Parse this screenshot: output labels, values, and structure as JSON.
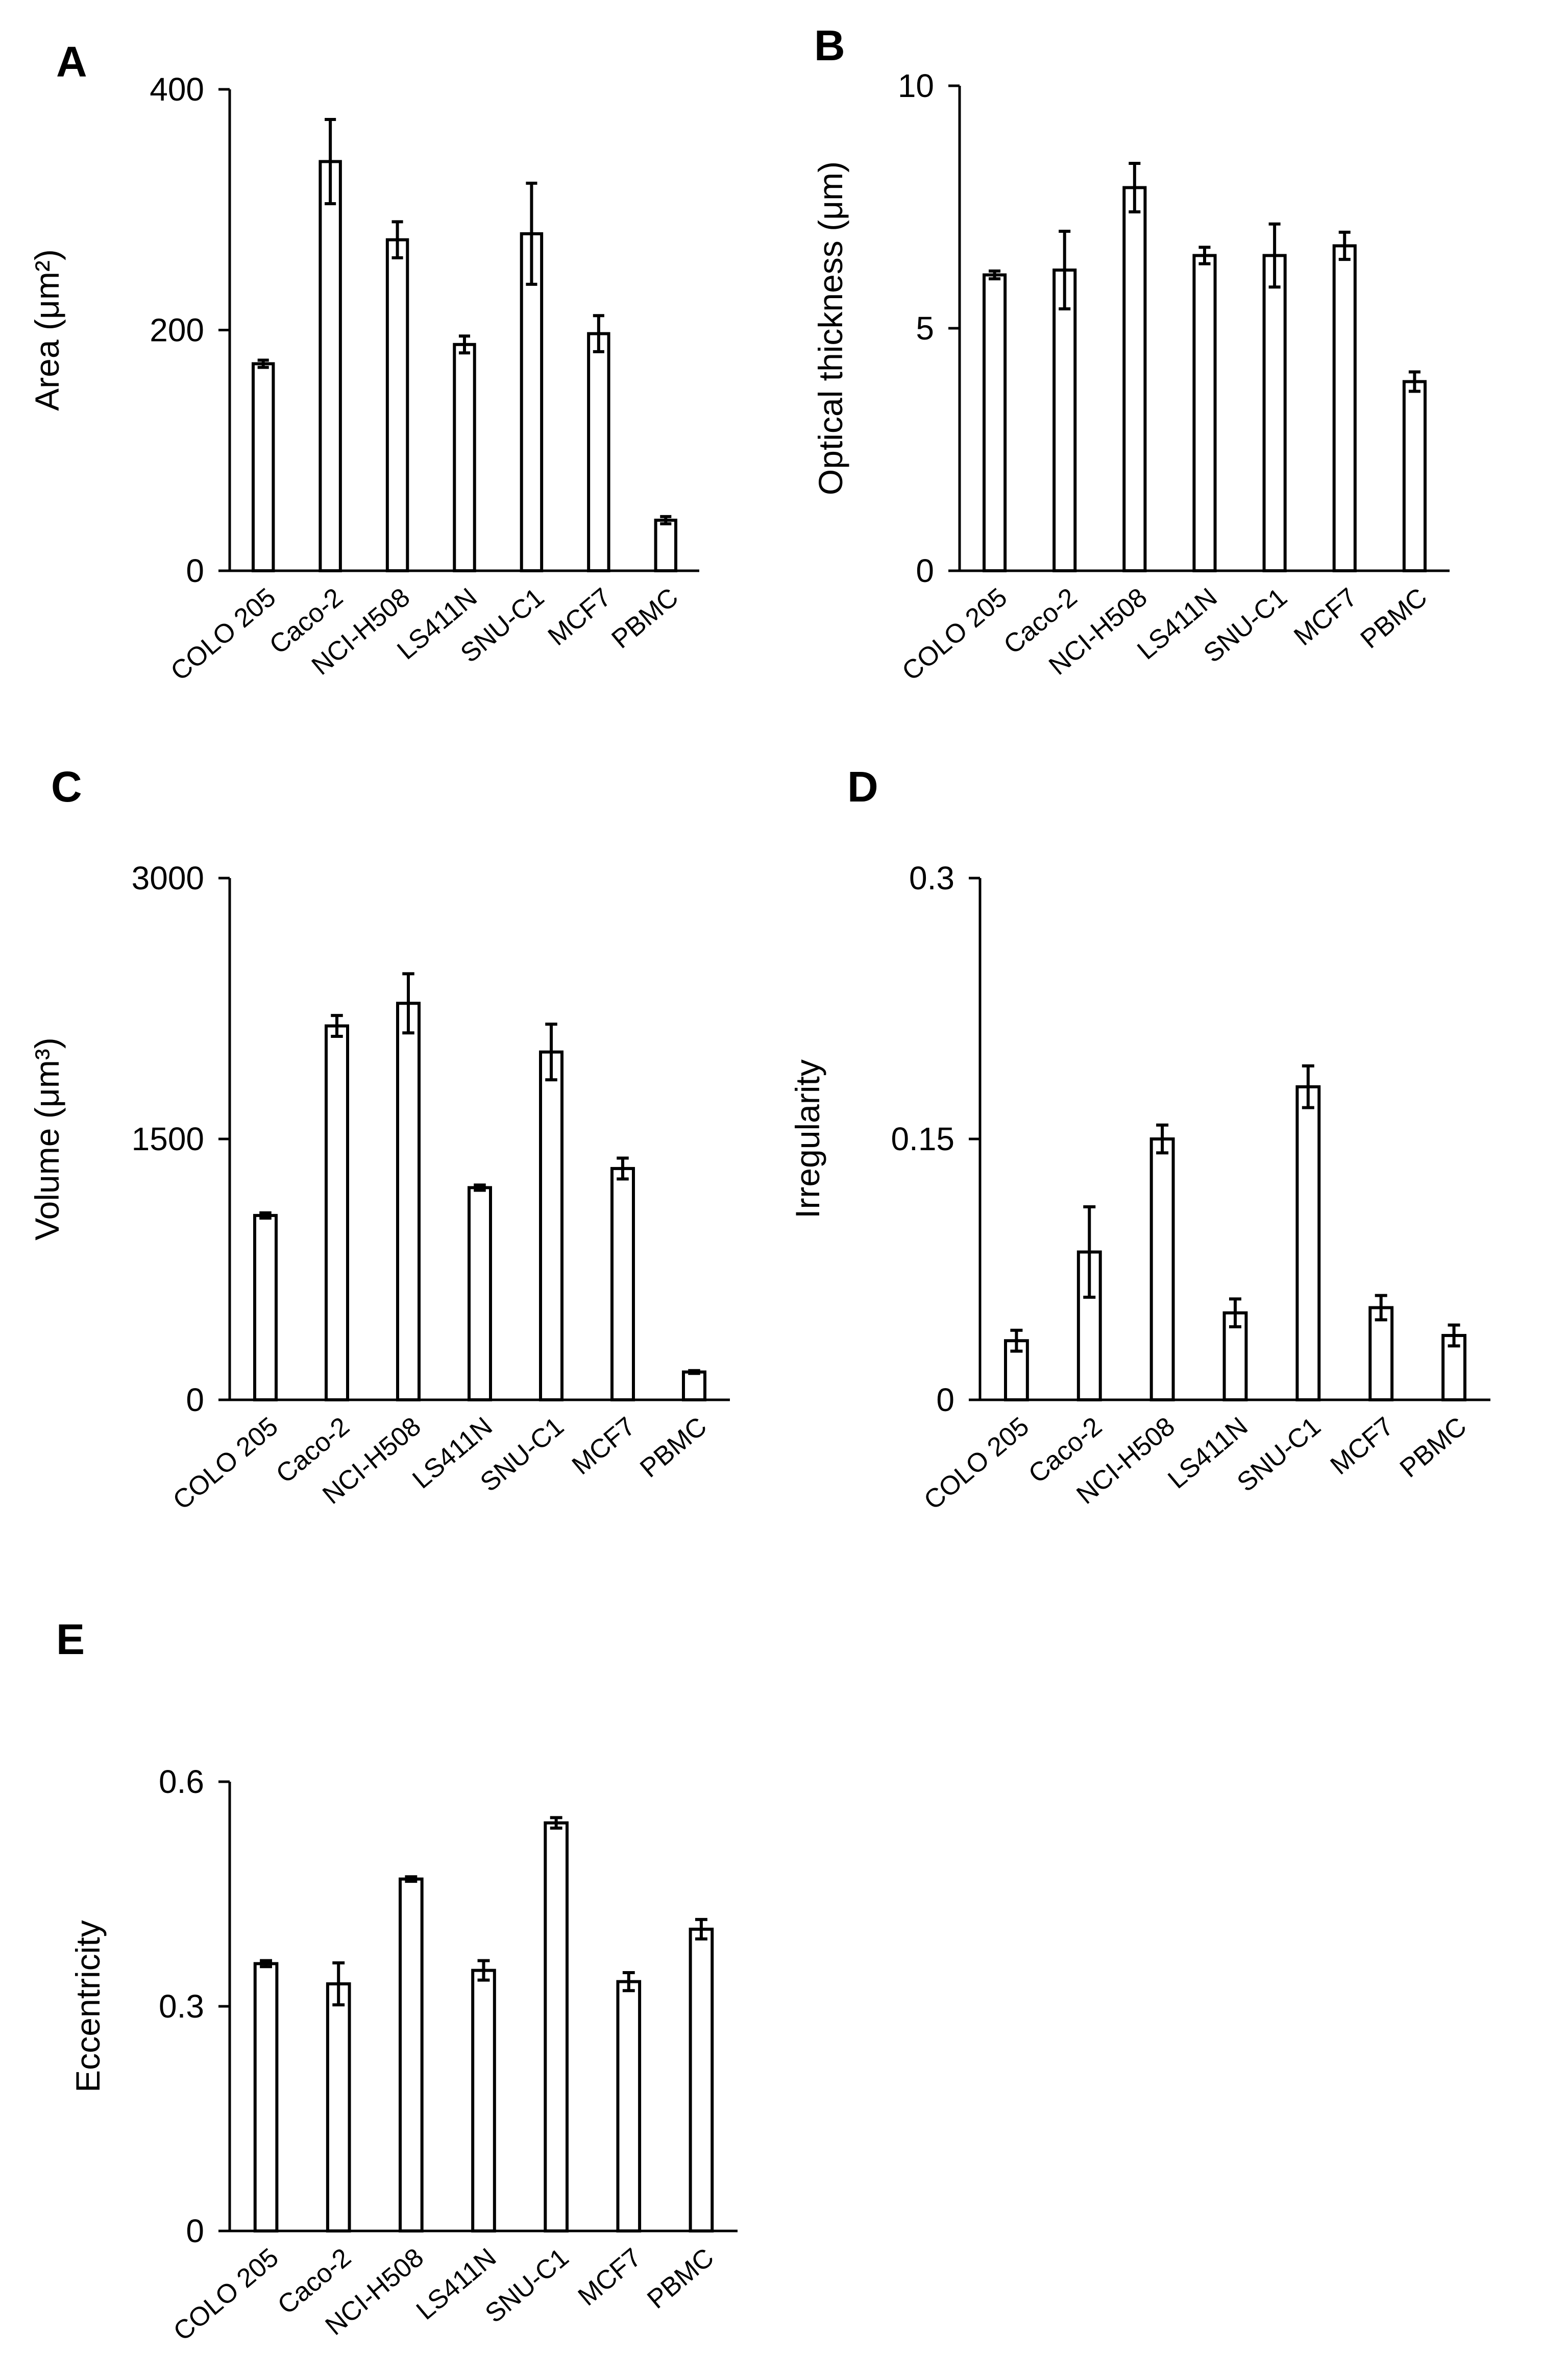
{
  "chart_data": [
    {
      "type": "bar",
      "panel": "A",
      "title": "",
      "xlabel": "",
      "ylabel": "Area (μm²)",
      "ylim": [
        0,
        400
      ],
      "yticks": [
        "0",
        "200",
        "400"
      ],
      "categories": [
        "COLO 205",
        "Caco-2",
        "NCI-H508",
        "LS411N",
        "SNU-C1",
        "MCF7",
        "PBMC"
      ],
      "values": [
        172,
        340,
        275,
        188,
        280,
        197,
        42
      ],
      "errors": [
        3,
        35,
        15,
        7,
        42,
        15,
        3
      ],
      "grid": false
    },
    {
      "type": "bar",
      "panel": "B",
      "title": "",
      "xlabel": "",
      "ylabel": "Optical thickness (μm)",
      "ylim": [
        0,
        10
      ],
      "yticks": [
        "0",
        "5",
        "10"
      ],
      "categories": [
        "COLO 205",
        "Caco-2",
        "NCI-H508",
        "LS411N",
        "SNU-C1",
        "MCF7",
        "PBMC"
      ],
      "values": [
        6.1,
        6.2,
        7.9,
        6.5,
        6.5,
        6.7,
        3.9
      ],
      "errors": [
        0.08,
        0.8,
        0.5,
        0.17,
        0.65,
        0.28,
        0.2
      ],
      "grid": false
    },
    {
      "type": "bar",
      "panel": "C",
      "title": "",
      "xlabel": "",
      "ylabel": "Volume (μm³)",
      "ylim": [
        0,
        3000
      ],
      "yticks": [
        "0",
        "1500",
        "3000"
      ],
      "categories": [
        "COLO 205",
        "Caco-2",
        "NCI-H508",
        "LS411N",
        "SNU-C1",
        "MCF7",
        "PBMC"
      ],
      "values": [
        1060,
        2150,
        2280,
        1220,
        2000,
        1330,
        160
      ],
      "errors": [
        15,
        60,
        170,
        15,
        160,
        60,
        8
      ],
      "grid": false
    },
    {
      "type": "bar",
      "panel": "D",
      "title": "",
      "xlabel": "",
      "ylabel": "Irregularity",
      "ylim": [
        0,
        0.3
      ],
      "yticks": [
        "0",
        "0.15",
        "0.3"
      ],
      "categories": [
        "COLO 205",
        "Caco-2",
        "NCI-H508",
        "LS411N",
        "SNU-C1",
        "MCF7",
        "PBMC"
      ],
      "values": [
        0.034,
        0.085,
        0.15,
        0.05,
        0.18,
        0.053,
        0.037
      ],
      "errors": [
        0.006,
        0.026,
        0.008,
        0.008,
        0.012,
        0.007,
        0.006
      ],
      "grid": false
    },
    {
      "type": "bar",
      "panel": "E",
      "title": "",
      "xlabel": "",
      "ylabel": "Eccentricity",
      "ylim": [
        0,
        0.6
      ],
      "yticks": [
        "0",
        "0.3",
        "0.6"
      ],
      "categories": [
        "COLO 205",
        "Caco-2",
        "NCI-H508",
        "LS411N",
        "SNU-C1",
        "MCF7",
        "PBMC"
      ],
      "values": [
        0.357,
        0.33,
        0.47,
        0.348,
        0.545,
        0.333,
        0.403
      ],
      "errors": [
        0.004,
        0.028,
        0.003,
        0.013,
        0.007,
        0.012,
        0.013
      ],
      "grid": false
    }
  ]
}
